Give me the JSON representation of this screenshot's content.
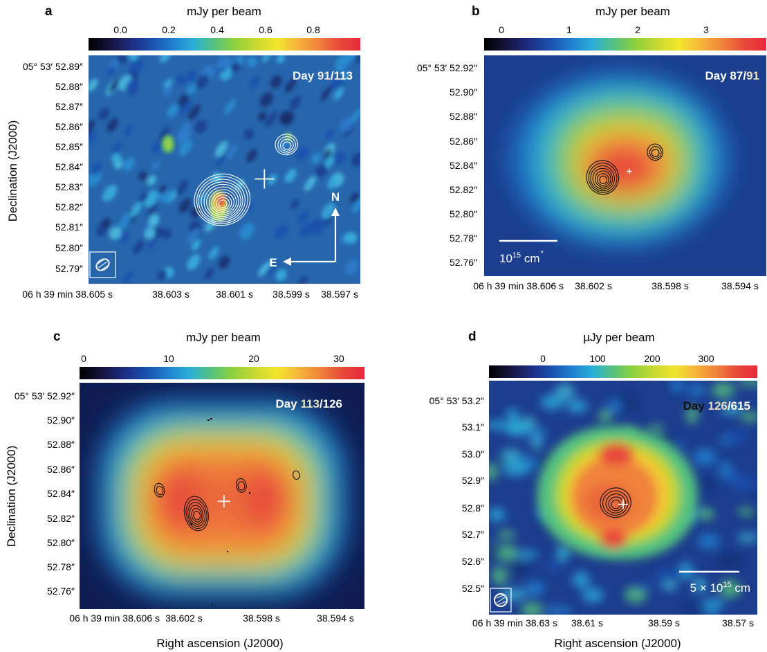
{
  "figure": {
    "x_axis_title": "Right ascension (J2000)",
    "y_axis_title": "Declination (J2000)"
  },
  "colormap": [
    "#000000",
    "#15133d",
    "#1d2b80",
    "#1a4fae",
    "#1f7fcf",
    "#2aaed9",
    "#55c27e",
    "#8ed13e",
    "#c9d931",
    "#f2e62b",
    "#f6b53a",
    "#f0823a",
    "#e84a3a",
    "#e8283c"
  ],
  "chart_data": [
    {
      "panel": "a",
      "type": "heatmap",
      "colorbar": {
        "title": "mJy per beam",
        "ticks": [
          "0.0",
          "0.2",
          "0.4",
          "0.6",
          "0.8"
        ],
        "range": [
          -0.12,
          0.98
        ]
      },
      "day_label": {
        "first": "91",
        "slash": "/",
        "second": "113"
      },
      "y_ticks": [
        "05° 53′ 52.89″",
        "52.88″",
        "52.87″",
        "52.86″",
        "52.85″",
        "52.84″",
        "52.83″",
        "52.82″",
        "52.81″",
        "52.80″",
        "52.79″"
      ],
      "x_ticks": [
        "06 h 39 min 38.605 s",
        "38.603 s",
        "38.601 s",
        "38.599 s",
        "38.597 s"
      ],
      "y_range": [
        52.785,
        52.895
      ],
      "x_range": [
        38.605,
        38.5965
      ],
      "center_marker": {
        "ra": 38.5995,
        "dec": 52.8355
      },
      "compass": {
        "north": "N",
        "east": "E"
      },
      "contour_color": "white",
      "contour_sources": [
        {
          "ra": 38.6008,
          "dec": 52.8235,
          "levels": 11
        },
        {
          "ra": 38.5988,
          "dec": 52.8515,
          "levels": 4
        }
      ]
    },
    {
      "panel": "b",
      "type": "heatmap",
      "colorbar": {
        "title": "mJy per beam",
        "ticks": [
          "0",
          "1",
          "2",
          "3"
        ],
        "range": [
          -0.35,
          3.75
        ]
      },
      "day_label": {
        "first": "87",
        "slash": "/",
        "second": "91"
      },
      "y_ticks": [
        "05° 53′ 52.92″",
        "52.90″",
        "52.88″",
        "52.86″",
        "52.84″",
        "52.82″",
        "52.80″",
        "52.78″",
        "52.76″"
      ],
      "x_ticks": [
        "06 h 39 min 38.606 s",
        "38.602 s",
        "38.598 s",
        "38.594 s"
      ],
      "y_range": [
        52.75,
        52.93
      ],
      "x_range": [
        38.6068,
        38.5928
      ],
      "center_marker": {
        "ra": 38.5996,
        "dec": 52.8355
      },
      "scale_bar": {
        "label": "10",
        "exponent": "15",
        "unit": "cm",
        "suffix": "′′"
      },
      "contour_color": "black",
      "contour_sources": [
        {
          "ra": 38.6009,
          "dec": 52.8285,
          "levels": 7
        },
        {
          "ra": 38.5983,
          "dec": 52.8505,
          "levels": 3
        }
      ]
    },
    {
      "panel": "c",
      "type": "heatmap",
      "colorbar": {
        "title": "mJy per beam",
        "ticks": [
          "0",
          "10",
          "20",
          "30"
        ],
        "range": [
          -0.8,
          32.6
        ]
      },
      "day_label": {
        "first": "113",
        "slash": "/",
        "second": "126"
      },
      "y_ticks": [
        "05° 53′ 52.92″",
        "52.90″",
        "52.88″",
        "52.86″",
        "52.84″",
        "52.82″",
        "52.80″",
        "52.78″",
        "52.76″"
      ],
      "x_ticks": [
        "06 h 39 min 38.606 s",
        "38.602 s",
        "38.598 s",
        "38.594 s"
      ],
      "y_range": [
        52.745,
        52.935
      ],
      "x_range": [
        38.6068,
        38.5922
      ],
      "center_marker": {
        "ra": 38.5994,
        "dec": 52.8355
      },
      "contour_color": "black",
      "contour_sources": [
        {
          "ra": 38.6008,
          "dec": 52.8235,
          "levels": 6
        },
        {
          "ra": 38.6027,
          "dec": 52.8445,
          "levels": 2
        },
        {
          "ra": 38.5985,
          "dec": 52.8485,
          "levels": 2
        },
        {
          "ra": 38.5957,
          "dec": 52.8575,
          "levels": 1
        }
      ]
    },
    {
      "panel": "d",
      "type": "heatmap",
      "colorbar": {
        "title": "µJy per beam",
        "ticks": [
          "0",
          "100",
          "200",
          "300"
        ],
        "range": [
          -95,
          370
        ]
      },
      "day_label": {
        "first": "126",
        "slash": "/",
        "second": "615"
      },
      "y_ticks": [
        "05° 53′ 53.2″",
        "53.1″",
        "53.0″",
        "52.9″",
        "52.8″",
        "52.7″",
        "52.6″",
        "52.5″"
      ],
      "x_ticks": [
        "06 h 39 min 38.63 s",
        "38.61 s",
        "38.59 s",
        "38.57 s"
      ],
      "y_range": [
        52.43,
        53.29
      ],
      "x_range": [
        38.636,
        38.5636
      ],
      "center_marker": {
        "ra": 38.5998,
        "dec": 52.8355
      },
      "scale_bar": {
        "label": "5 × 10",
        "exponent": "15",
        "unit": " cm"
      },
      "contour_color": "black",
      "contour_sources": [
        {
          "ra": 38.6018,
          "dec": 52.8355,
          "levels": 5
        }
      ]
    }
  ]
}
